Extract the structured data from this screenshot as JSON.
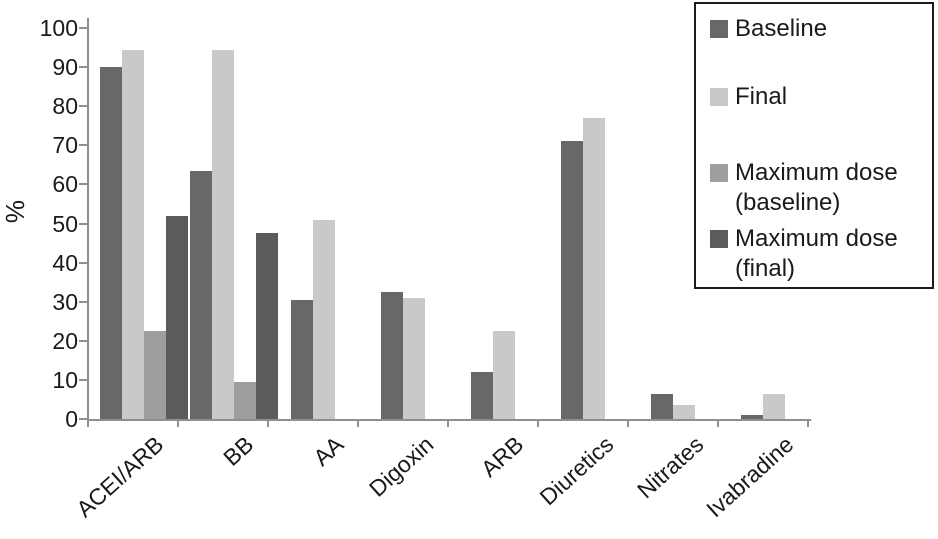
{
  "colors": {
    "background": "#ffffff",
    "axis": "#8f8f8f",
    "text": "#1a1a1a",
    "legend_border": "#1a1a1a"
  },
  "chart_data": {
    "type": "bar",
    "title": "",
    "xlabel": "",
    "ylabel": "%",
    "ylim": [
      0,
      100
    ],
    "grid": false,
    "legend_position": "top-right",
    "yticks": [
      0,
      10,
      20,
      30,
      40,
      50,
      60,
      70,
      80,
      90,
      100
    ],
    "categories": [
      "ACEI/ARB",
      "BB",
      "AA",
      "Digoxin",
      "ARB",
      "Diuretics",
      "Nitrates",
      "Ivabradine"
    ],
    "series": [
      {
        "name": "Baseline",
        "color": "#686868",
        "values": [
          90,
          63.5,
          30.5,
          32.5,
          12,
          71,
          6.5,
          1
        ]
      },
      {
        "name": "Final",
        "color": "#c9c9c9",
        "values": [
          94.5,
          94.5,
          51,
          31,
          22.5,
          77,
          3.5,
          6.5
        ]
      },
      {
        "name": "Maximum dose (baseline)",
        "color": "#9e9e9e",
        "values": [
          22.5,
          9.5,
          null,
          null,
          null,
          null,
          null,
          null
        ]
      },
      {
        "name": "Maximum dose (final)",
        "color": "#5b5b5b",
        "values": [
          52,
          47.5,
          null,
          null,
          null,
          null,
          null,
          null
        ]
      }
    ],
    "legend": {
      "items": [
        {
          "label": "Baseline",
          "lines": [
            "Baseline"
          ]
        },
        {
          "label": "Final",
          "lines": [
            "Final"
          ]
        },
        {
          "label": "Maximum dose (baseline)",
          "lines": [
            "Maximum dose",
            "(baseline)"
          ]
        },
        {
          "label": "Maximum dose (final)",
          "lines": [
            "Maximum dose",
            "(final)"
          ]
        }
      ]
    }
  }
}
